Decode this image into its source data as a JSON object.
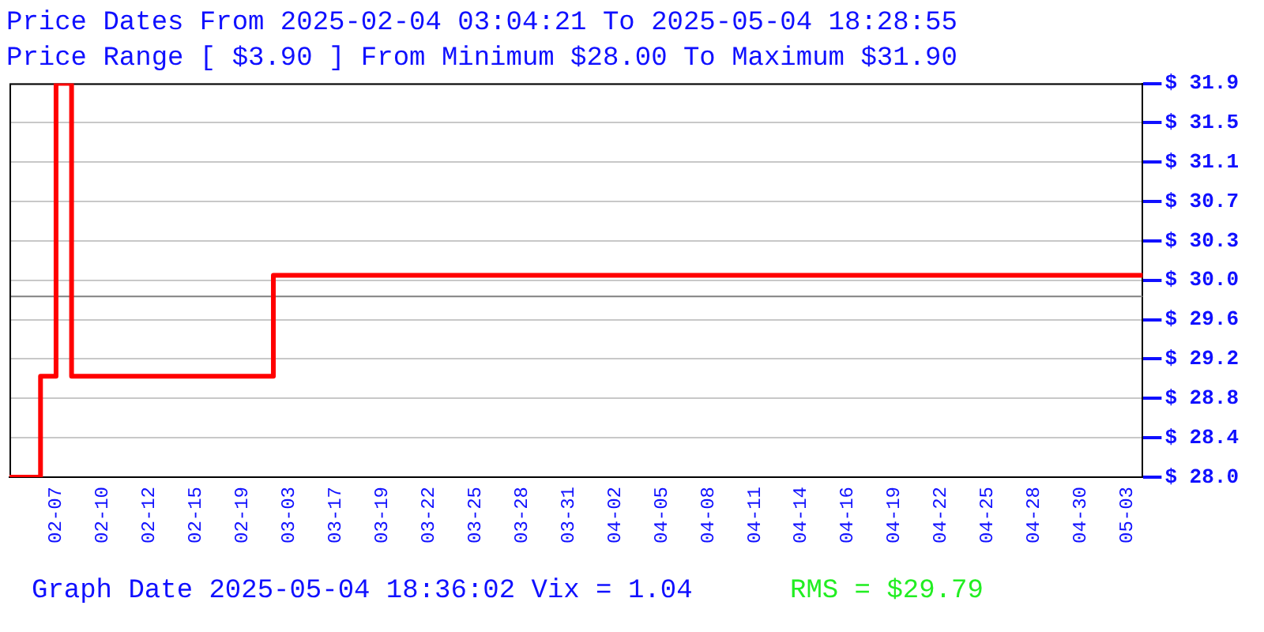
{
  "chart_data": {
    "type": "step",
    "title": "Price Dates From 2025-02-04 03:04:21 To 2025-05-04 18:28:55",
    "subtitle": "Price Range [ $3.90 ] From Minimum $28.00 To Maximum $31.90",
    "categories": [
      null,
      null,
      null,
      "02-07",
      null,
      null,
      "02-10",
      null,
      null,
      "02-12",
      null,
      null,
      "02-15",
      null,
      null,
      "02-19",
      null,
      null,
      "03-03",
      null,
      null,
      "03-17",
      null,
      null,
      "03-19",
      null,
      null,
      "03-22",
      null,
      null,
      "03-25",
      null,
      null,
      "03-28",
      null,
      null,
      "03-31",
      null,
      null,
      "04-02",
      null,
      null,
      "04-05",
      null,
      null,
      "04-08",
      null,
      null,
      "04-11",
      null,
      null,
      "04-14",
      null,
      null,
      "04-16",
      null,
      null,
      "04-19",
      null,
      null,
      "04-22",
      null,
      null,
      "04-25",
      null,
      null,
      "04-28",
      null,
      null,
      "04-30",
      null,
      null,
      "05-03",
      null
    ],
    "series": [
      {
        "color": "#ff0000",
        "values": [
          28.0,
          28.0,
          29.0,
          31.9,
          29.0,
          29.0,
          29.0,
          29.0,
          29.0,
          29.0,
          29.0,
          29.0,
          29.0,
          29.0,
          29.0,
          29.0,
          29.0,
          30.0,
          30.0,
          30.0,
          30.0,
          30.0,
          30.0,
          30.0,
          30.0,
          30.0,
          30.0,
          30.0,
          30.0,
          30.0,
          30.0,
          30.0,
          30.0,
          30.0,
          30.0,
          30.0,
          30.0,
          30.0,
          30.0,
          30.0,
          30.0,
          30.0,
          30.0,
          30.0,
          30.0,
          30.0,
          30.0,
          30.0,
          30.0,
          30.0,
          30.0,
          30.0,
          30.0,
          30.0,
          30.0,
          30.0,
          30.0,
          30.0,
          30.0,
          30.0,
          30.0,
          30.0,
          30.0,
          30.0,
          30.0,
          30.0,
          30.0,
          30.0,
          30.0,
          30.0,
          30.0,
          30.0,
          30.0,
          30.0
        ]
      }
    ],
    "ylim": [
      28.0,
      31.9
    ],
    "yticks": [
      {
        "value": 28.0,
        "label": "$ 28.0"
      },
      {
        "value": 28.39,
        "label": "$ 28.4"
      },
      {
        "value": 28.78,
        "label": "$ 28.8"
      },
      {
        "value": 29.17,
        "label": "$ 29.2"
      },
      {
        "value": 29.56,
        "label": "$ 29.6"
      },
      {
        "value": 29.95,
        "label": "$ 30.0"
      },
      {
        "value": 30.34,
        "label": "$ 30.3"
      },
      {
        "value": 30.73,
        "label": "$ 30.7"
      },
      {
        "value": 31.12,
        "label": "$ 31.1"
      },
      {
        "value": 31.51,
        "label": "$ 31.5"
      },
      {
        "value": 31.9,
        "label": "$ 31.9"
      }
    ],
    "grid": "y",
    "marker": "none",
    "line_style": "solid",
    "legend": false,
    "ref_lines": [
      {
        "axis": "y",
        "value": 29.79,
        "color": "#808080"
      }
    ],
    "annotations": [
      "Graph Date 2025-05-04 18:36:02 Vix = 1.04",
      "RMS = $29.79"
    ]
  }
}
